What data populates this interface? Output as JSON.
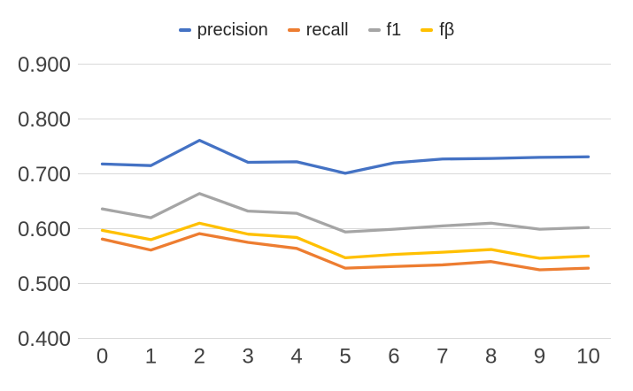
{
  "chart_data": {
    "type": "line",
    "title": "",
    "xlabel": "",
    "ylabel": "",
    "x": [
      "0",
      "1",
      "2",
      "3",
      "4",
      "5",
      "6",
      "7",
      "8",
      "9",
      "10"
    ],
    "series": [
      {
        "name": "precision",
        "color": "#4472C4",
        "values": [
          0.718,
          0.715,
          0.761,
          0.721,
          0.722,
          0.701,
          0.72,
          0.727,
          0.728,
          0.73,
          0.731
        ]
      },
      {
        "name": "recall",
        "color": "#ED7D31",
        "values": [
          0.581,
          0.561,
          0.591,
          0.575,
          0.564,
          0.528,
          0.531,
          0.534,
          0.54,
          0.525,
          0.528
        ]
      },
      {
        "name": "f1",
        "color": "#A5A5A5",
        "values": [
          0.636,
          0.62,
          0.664,
          0.632,
          0.628,
          0.594,
          0.599,
          0.605,
          0.61,
          0.599,
          0.602
        ]
      },
      {
        "name": "fβ",
        "color": "#FFC000",
        "values": [
          0.597,
          0.58,
          0.61,
          0.59,
          0.584,
          0.547,
          0.553,
          0.557,
          0.562,
          0.546,
          0.55
        ]
      }
    ],
    "ylim": [
      0.4,
      0.9
    ],
    "yticks": [
      "0.900",
      "0.800",
      "0.700",
      "0.600",
      "0.500",
      "0.400"
    ],
    "xticks": [
      "0",
      "1",
      "2",
      "3",
      "4",
      "5",
      "6",
      "7",
      "8",
      "9",
      "10"
    ],
    "grid": "horizontal",
    "gridline_color": "#D9D9D9",
    "axis_text_color": "#404040",
    "legend_position": "top-center",
    "legend": [
      "precision",
      "recall",
      "f1",
      "fβ"
    ]
  }
}
